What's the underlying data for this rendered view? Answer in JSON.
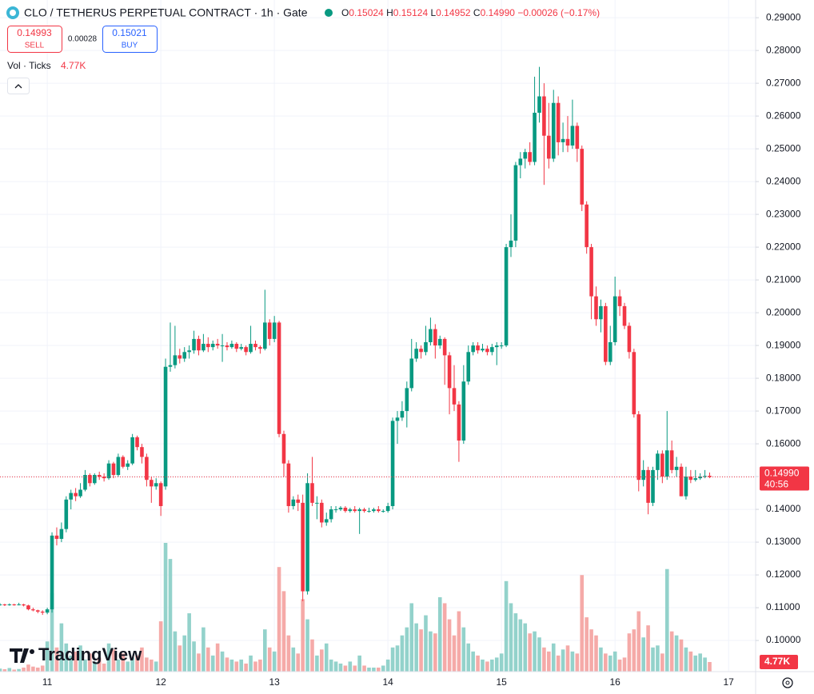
{
  "header": {
    "title": "CLO / TETHERUS PERPETUAL CONTRACT · 1h · Gate",
    "legend": [
      {
        "key": "O",
        "value": 0.15024
      },
      {
        "key": "H",
        "value": 0.15124
      },
      {
        "key": "L",
        "value": 0.14952
      },
      {
        "key": "C",
        "value": {
          "value": 0.1499,
          "label": "0.14990"
        }
      }
    ],
    "change": {
      "value": -0.00026,
      "label": "−0.00026"
    },
    "change_pct": {
      "value": -0.17,
      "label": "(−0.17%)"
    },
    "sell": {
      "price": 0.14993,
      "label": "SELL"
    },
    "spread": 0.00028,
    "buy": {
      "price": 0.15021,
      "label": "BUY"
    },
    "volume_legend": {
      "title": "Vol · Ticks",
      "value": 4770,
      "value_label": "4.77K"
    },
    "countdown": "40:56",
    "watermark": "TradingView"
  },
  "chart_data": {
    "type": "candlestick",
    "categories": [
      null,
      null,
      null,
      null,
      null,
      null,
      null,
      null,
      null,
      null,
      "11",
      null,
      null,
      null,
      null,
      null,
      null,
      null,
      null,
      null,
      null,
      null,
      null,
      null,
      null,
      null,
      null,
      null,
      null,
      null,
      null,
      null,
      null,
      null,
      "12",
      null,
      null,
      null,
      null,
      null,
      null,
      null,
      null,
      null,
      null,
      null,
      null,
      null,
      null,
      null,
      null,
      null,
      null,
      null,
      null,
      null,
      null,
      null,
      "13",
      null,
      null,
      null,
      null,
      null,
      null,
      null,
      null,
      null,
      null,
      null,
      null,
      null,
      null,
      null,
      null,
      null,
      null,
      null,
      null,
      null,
      null,
      null,
      "14",
      null,
      null,
      null,
      null,
      null,
      null,
      null,
      null,
      null,
      null,
      null,
      null,
      null,
      null,
      null,
      null,
      null,
      null,
      null,
      null,
      null,
      null,
      null,
      "15",
      null,
      null,
      null,
      null,
      null,
      null,
      null,
      null,
      null,
      null,
      null,
      null,
      null,
      null,
      null,
      null,
      null,
      null,
      null,
      null,
      null,
      null,
      null,
      "16",
      null,
      null,
      null,
      null,
      null,
      null,
      null,
      null,
      null,
      null,
      null,
      null,
      null,
      null,
      null,
      null,
      null,
      null,
      null,
      null,
      null,
      null,
      null,
      "17"
    ],
    "open": [
      0.1108,
      0.111,
      0.1108,
      0.111,
      0.1109,
      0.111,
      0.1107,
      0.1095,
      0.1092,
      0.1088,
      0.1085,
      0.1095,
      0.132,
      0.131,
      0.134,
      0.143,
      0.145,
      0.144,
      0.146,
      0.1505,
      0.148,
      0.1505,
      0.15,
      0.1495,
      0.154,
      0.1505,
      0.156,
      0.153,
      0.154,
      0.162,
      0.159,
      0.156,
      0.149,
      0.147,
      0.148,
      0.147,
      0.1835,
      0.184,
      0.187,
      0.186,
      0.188,
      0.1885,
      0.192,
      0.1885,
      0.1905,
      0.1895,
      0.1905,
      0.19,
      0.19,
      0.1895,
      0.1905,
      0.189,
      0.1895,
      0.188,
      0.1905,
      0.1895,
      0.189,
      0.197,
      0.192,
      0.197,
      0.163,
      0.154,
      0.141,
      0.143,
      0.142,
      0.115,
      0.148,
      0.142,
      0.142,
      0.136,
      0.137,
      0.14,
      0.14,
      0.1405,
      0.1395,
      0.14,
      0.1395,
      0.14,
      0.1395,
      0.1395,
      0.14,
      0.1395,
      0.1395,
      0.141,
      0.167,
      0.168,
      0.17,
      0.177,
      0.186,
      0.189,
      0.188,
      0.191,
      0.195,
      0.19,
      0.192,
      0.187,
      0.177,
      0.172,
      0.161,
      0.179,
      0.188,
      0.19,
      0.1885,
      0.189,
      0.188,
      0.1895,
      0.19,
      0.19,
      0.22,
      0.222,
      0.245,
      0.247,
      0.249,
      0.246,
      0.261,
      0.266,
      0.254,
      0.247,
      0.264,
      0.252,
      0.253,
      0.251,
      0.257,
      0.25,
      0.233,
      0.22,
      0.205,
      0.198,
      0.202,
      0.185,
      0.191,
      0.205,
      0.202,
      0.196,
      0.188,
      0.169,
      0.149,
      0.152,
      0.142,
      0.152,
      0.157,
      0.15,
      0.158,
      0.152,
      0.153,
      0.144,
      0.15,
      0.149,
      0.1495,
      0.15,
      0.15024,
      null,
      null,
      null,
      null
    ],
    "high": [
      0.1114,
      0.1112,
      0.1113,
      0.1112,
      0.1115,
      0.1112,
      0.1109,
      0.11,
      0.1094,
      0.1092,
      0.11,
      0.133,
      0.1345,
      0.136,
      0.144,
      0.146,
      0.1465,
      0.148,
      0.152,
      0.151,
      0.151,
      0.1515,
      0.151,
      0.155,
      0.1545,
      0.157,
      0.1565,
      0.155,
      0.163,
      0.1625,
      0.16,
      0.157,
      0.15,
      0.1495,
      0.1485,
      0.186,
      0.197,
      0.196,
      0.189,
      0.1895,
      0.19,
      0.1945,
      0.193,
      0.1935,
      0.1925,
      0.1915,
      0.192,
      0.1935,
      0.191,
      0.1915,
      0.191,
      0.1905,
      0.19,
      0.196,
      0.1915,
      0.19,
      0.207,
      0.198,
      0.199,
      0.1975,
      0.164,
      0.155,
      0.144,
      0.1445,
      0.1445,
      0.151,
      0.156,
      0.144,
      0.143,
      0.139,
      0.141,
      0.141,
      0.141,
      0.141,
      0.1405,
      0.141,
      0.1405,
      0.1405,
      0.1405,
      0.1405,
      0.141,
      0.14,
      0.142,
      0.168,
      0.17,
      0.173,
      0.179,
      0.192,
      0.191,
      0.19,
      0.196,
      0.1985,
      0.1965,
      0.193,
      0.1925,
      0.188,
      0.184,
      0.173,
      0.184,
      0.19,
      0.191,
      0.191,
      0.1905,
      0.19,
      0.1905,
      0.191,
      0.191,
      0.221,
      0.23,
      0.246,
      0.249,
      0.25,
      0.252,
      0.272,
      0.275,
      0.27,
      0.264,
      0.268,
      0.266,
      0.258,
      0.26,
      0.265,
      0.258,
      0.251,
      0.234,
      0.221,
      0.208,
      0.204,
      0.203,
      0.196,
      0.211,
      0.207,
      0.203,
      0.197,
      0.189,
      0.17,
      0.155,
      0.153,
      0.153,
      0.158,
      0.158,
      0.17,
      0.161,
      0.156,
      0.154,
      0.153,
      0.152,
      0.152,
      0.151,
      0.152,
      0.15124,
      null,
      null,
      null,
      null
    ],
    "low": [
      0.1106,
      0.1105,
      0.1106,
      0.1106,
      0.1107,
      0.1104,
      0.1092,
      0.1089,
      0.1083,
      0.1078,
      0.108,
      0.1085,
      0.129,
      0.13,
      0.133,
      0.14,
      0.1425,
      0.1435,
      0.1455,
      0.147,
      0.1475,
      0.149,
      0.1485,
      0.149,
      0.1495,
      0.15,
      0.1525,
      0.152,
      0.1535,
      0.158,
      0.154,
      0.147,
      0.142,
      0.146,
      0.138,
      0.146,
      0.182,
      0.183,
      0.1845,
      0.185,
      0.186,
      0.1875,
      0.187,
      0.188,
      0.188,
      0.1885,
      0.189,
      0.185,
      0.1885,
      0.189,
      0.188,
      0.1885,
      0.187,
      0.1875,
      0.1885,
      0.1875,
      0.1885,
      0.19,
      0.191,
      0.162,
      0.15,
      0.139,
      0.14,
      0.1395,
      0.112,
      0.114,
      0.141,
      0.137,
      0.1345,
      0.135,
      0.136,
      0.139,
      0.1395,
      0.139,
      0.139,
      0.139,
      0.1325,
      0.139,
      0.139,
      0.139,
      0.139,
      0.139,
      0.139,
      0.14,
      0.16,
      0.167,
      0.165,
      0.176,
      0.185,
      0.186,
      0.187,
      0.19,
      0.186,
      0.189,
      0.178,
      0.169,
      0.17,
      0.1545,
      0.16,
      0.178,
      0.187,
      0.1875,
      0.188,
      0.187,
      0.187,
      0.184,
      0.189,
      0.1895,
      0.217,
      0.22,
      0.241,
      0.244,
      0.245,
      0.245,
      0.258,
      0.239,
      0.244,
      0.246,
      0.248,
      0.249,
      0.249,
      0.25,
      0.246,
      0.231,
      0.218,
      0.198,
      0.196,
      0.194,
      0.184,
      0.184,
      0.19,
      0.199,
      0.195,
      0.186,
      0.168,
      0.1455,
      0.147,
      0.1385,
      0.141,
      0.149,
      0.148,
      0.149,
      0.151,
      0.15,
      0.144,
      0.143,
      0.148,
      0.1485,
      0.149,
      0.1495,
      0.14952,
      null,
      null,
      null,
      null
    ],
    "close": [
      0.111,
      0.1108,
      0.111,
      0.1109,
      0.111,
      0.1107,
      0.1095,
      0.1092,
      0.1088,
      0.1085,
      0.1095,
      0.132,
      0.131,
      0.134,
      0.143,
      0.145,
      0.144,
      0.146,
      0.1505,
      0.148,
      0.1505,
      0.15,
      0.1495,
      0.154,
      0.1505,
      0.156,
      0.153,
      0.154,
      0.162,
      0.159,
      0.156,
      0.149,
      0.147,
      0.148,
      0.141,
      0.1835,
      0.184,
      0.187,
      0.186,
      0.188,
      0.1885,
      0.192,
      0.1885,
      0.1905,
      0.1895,
      0.1905,
      0.19,
      0.19,
      0.1895,
      0.1905,
      0.189,
      0.1895,
      0.188,
      0.1905,
      0.1895,
      0.189,
      0.197,
      0.192,
      0.197,
      0.163,
      0.154,
      0.141,
      0.143,
      0.142,
      0.115,
      0.148,
      0.142,
      0.142,
      0.136,
      0.137,
      0.14,
      0.14,
      0.1405,
      0.1395,
      0.14,
      0.1395,
      0.14,
      0.1395,
      0.1395,
      0.14,
      0.1395,
      0.1395,
      0.141,
      0.167,
      0.168,
      0.17,
      0.177,
      0.186,
      0.189,
      0.188,
      0.191,
      0.195,
      0.19,
      0.192,
      0.187,
      0.177,
      0.172,
      0.161,
      0.179,
      0.188,
      0.19,
      0.1885,
      0.189,
      0.188,
      0.1895,
      0.19,
      0.19,
      0.22,
      0.222,
      0.245,
      0.247,
      0.249,
      0.246,
      0.261,
      0.266,
      0.254,
      0.247,
      0.264,
      0.252,
      0.253,
      0.251,
      0.257,
      0.25,
      0.233,
      0.22,
      0.205,
      0.198,
      0.202,
      0.185,
      0.191,
      0.205,
      0.202,
      0.196,
      0.188,
      0.169,
      0.149,
      0.152,
      0.142,
      0.152,
      0.157,
      0.15,
      0.158,
      0.152,
      0.153,
      0.144,
      0.15,
      0.149,
      0.1495,
      0.15,
      0.1502,
      0.1499,
      null,
      null,
      null,
      null
    ],
    "volume": [
      1500,
      1200,
      1800,
      1000,
      1300,
      2000,
      3500,
      2500,
      2000,
      3000,
      15000,
      39000,
      12000,
      24000,
      14000,
      8000,
      10000,
      13000,
      6000,
      9000,
      5000,
      7000,
      4000,
      14000,
      11000,
      6000,
      9000,
      5000,
      7000,
      8000,
      12000,
      7000,
      6000,
      5000,
      25000,
      64000,
      56000,
      20000,
      13000,
      18000,
      29000,
      15000,
      9000,
      22000,
      12000,
      8000,
      14000,
      10000,
      7000,
      6000,
      5000,
      6000,
      4000,
      8000,
      5000,
      6000,
      21000,
      12000,
      10000,
      52000,
      40000,
      18000,
      12000,
      9000,
      36000,
      26000,
      16000,
      8000,
      11000,
      14000,
      6000,
      5000,
      4000,
      3000,
      5000,
      3000,
      8000,
      3000,
      2000,
      2000,
      2000,
      3000,
      6000,
      12000,
      13000,
      18000,
      22000,
      34000,
      24000,
      21000,
      28000,
      20000,
      19000,
      37000,
      34000,
      26000,
      18000,
      30000,
      22000,
      14000,
      10000,
      8000,
      6000,
      5000,
      6000,
      7000,
      9000,
      45000,
      34000,
      29000,
      26000,
      24000,
      19000,
      20000,
      17000,
      12000,
      10000,
      14000,
      8000,
      11000,
      13000,
      10000,
      9000,
      48000,
      27000,
      21000,
      18000,
      12000,
      9000,
      8000,
      10000,
      6000,
      7000,
      19000,
      21000,
      30000,
      17000,
      23000,
      12000,
      13000,
      9000,
      51000,
      20000,
      18000,
      16000,
      12000,
      10000,
      8000,
      9000,
      7000,
      4770,
      null,
      null,
      null,
      null
    ],
    "ylim": [
      0.0905,
      0.2954
    ],
    "yticks": [
      {
        "value": 0.1,
        "label": "0.10000"
      },
      {
        "value": 0.11,
        "label": "0.11000"
      },
      {
        "value": 0.12,
        "label": "0.12000"
      },
      {
        "value": 0.13,
        "label": "0.13000"
      },
      {
        "value": 0.14,
        "label": "0.14000"
      },
      {
        "value": 0.15,
        "label": "0.15000"
      },
      {
        "value": 0.16,
        "label": "0.16000"
      },
      {
        "value": 0.17,
        "label": "0.17000"
      },
      {
        "value": 0.18,
        "label": "0.18000"
      },
      {
        "value": 0.19,
        "label": "0.19000"
      },
      {
        "value": 0.2,
        "label": "0.20000"
      },
      {
        "value": 0.21,
        "label": "0.21000"
      },
      {
        "value": 0.22,
        "label": "0.22000"
      },
      {
        "value": 0.23,
        "label": "0.23000"
      },
      {
        "value": 0.24,
        "label": "0.24000"
      },
      {
        "value": 0.25,
        "label": "0.25000"
      },
      {
        "value": 0.26,
        "label": "0.26000"
      },
      {
        "value": 0.27,
        "label": "0.27000"
      },
      {
        "value": 0.28,
        "label": "0.28000"
      },
      {
        "value": 0.29,
        "label": "0.29000"
      }
    ],
    "grid": true,
    "up_color": "#089981",
    "down_color": "#f23645",
    "volume_up_color": "#93d2cb",
    "volume_down_color": "#f5aaa8"
  }
}
